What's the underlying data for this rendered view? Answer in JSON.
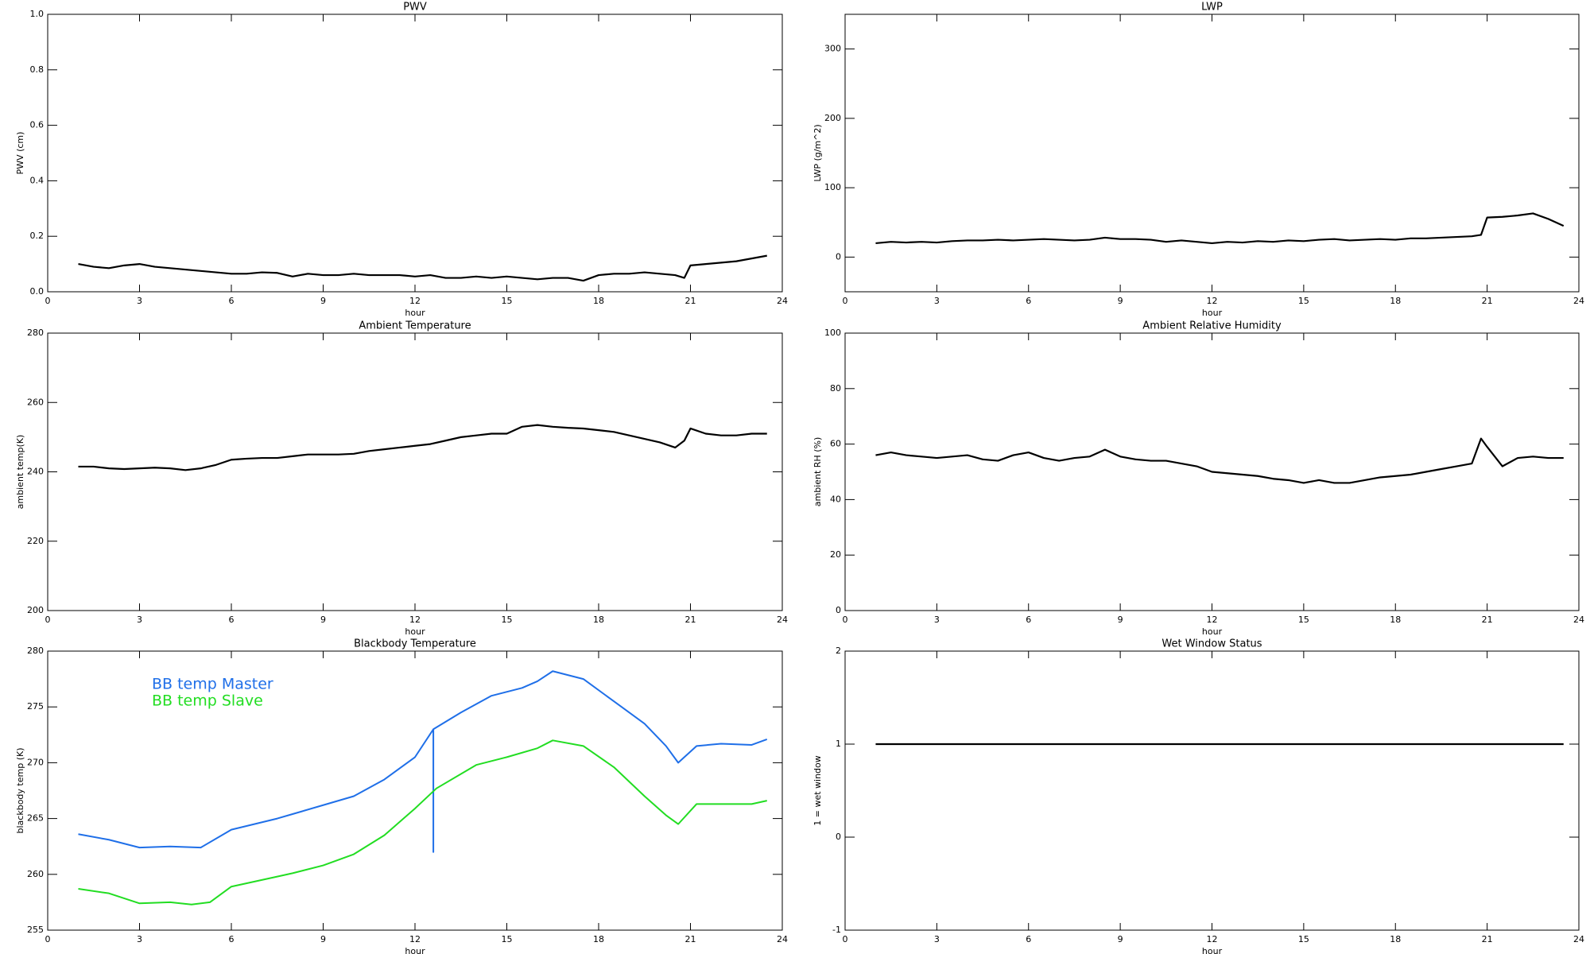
{
  "chart_data": [
    {
      "type": "line",
      "title": "PWV",
      "xlabel": "hour",
      "ylabel": "PWV (cm)",
      "color": "#000000",
      "x": [
        1,
        1.5,
        2,
        2.5,
        3,
        3.5,
        4,
        4.5,
        5,
        5.5,
        6,
        6.5,
        7,
        7.5,
        8,
        8.5,
        9,
        9.5,
        10,
        10.5,
        11,
        11.5,
        12,
        12.5,
        13,
        13.5,
        14,
        14.5,
        15,
        15.5,
        16,
        16.5,
        17,
        17.5,
        18,
        18.5,
        19,
        19.5,
        20,
        20.5,
        20.8,
        21,
        21.5,
        22,
        22.5,
        23,
        23.5
      ],
      "values": [
        0.1,
        0.09,
        0.085,
        0.095,
        0.1,
        0.09,
        0.085,
        0.08,
        0.075,
        0.07,
        0.065,
        0.065,
        0.07,
        0.068,
        0.055,
        0.065,
        0.06,
        0.06,
        0.065,
        0.06,
        0.06,
        0.06,
        0.055,
        0.06,
        0.05,
        0.05,
        0.055,
        0.05,
        0.055,
        0.05,
        0.045,
        0.05,
        0.05,
        0.04,
        0.06,
        0.065,
        0.065,
        0.07,
        0.065,
        0.06,
        0.05,
        0.095,
        0.1,
        0.105,
        0.11,
        0.12,
        0.13
      ],
      "xlim": [
        0,
        24
      ],
      "xticks": [
        0,
        3,
        6,
        9,
        12,
        15,
        18,
        21,
        24
      ],
      "ylim": [
        0,
        1
      ],
      "yticks": [
        {
          "value": 0,
          "label": "0.0"
        },
        0.2,
        0.4,
        0.6,
        0.8,
        {
          "value": 1,
          "label": "1.0"
        }
      ]
    },
    {
      "type": "line",
      "title": "LWP",
      "xlabel": "hour",
      "ylabel": "LWP (g/m^2)",
      "color": "#000000",
      "x": [
        1,
        1.5,
        2,
        2.5,
        3,
        3.5,
        4,
        4.5,
        5,
        5.5,
        6,
        6.5,
        7,
        7.5,
        8,
        8.5,
        9,
        9.5,
        10,
        10.5,
        11,
        11.5,
        12,
        12.5,
        13,
        13.5,
        14,
        14.5,
        15,
        15.5,
        16,
        16.5,
        17,
        17.5,
        18,
        18.5,
        19,
        19.5,
        20,
        20.5,
        20.8,
        21,
        21.5,
        22,
        22.5,
        23,
        23.5
      ],
      "values": [
        20,
        22,
        21,
        22,
        21,
        23,
        24,
        24,
        25,
        24,
        25,
        26,
        25,
        24,
        25,
        28,
        26,
        26,
        25,
        22,
        24,
        22,
        20,
        22,
        21,
        23,
        22,
        24,
        23,
        25,
        26,
        24,
        25,
        26,
        25,
        27,
        27,
        28,
        29,
        30,
        32,
        57,
        58,
        60,
        63,
        55,
        45
      ],
      "xlim": [
        0,
        24
      ],
      "xticks": [
        0,
        3,
        6,
        9,
        12,
        15,
        18,
        21,
        24
      ],
      "ylim": [
        -50,
        350
      ],
      "yticks": [
        0,
        100,
        200,
        300
      ]
    },
    {
      "type": "line",
      "title": "Ambient Temperature",
      "xlabel": "hour",
      "ylabel": "ambient temp(K)",
      "color": "#000000",
      "x": [
        1,
        1.5,
        2,
        2.5,
        3,
        3.5,
        4,
        4.5,
        5,
        5.5,
        6,
        6.5,
        7,
        7.5,
        8,
        8.5,
        9,
        9.5,
        10,
        10.5,
        11,
        11.5,
        12,
        12.5,
        13,
        13.5,
        14,
        14.5,
        15,
        15.5,
        16,
        16.5,
        17,
        17.5,
        18,
        18.5,
        19,
        19.5,
        20,
        20.5,
        20.8,
        21,
        21.5,
        22,
        22.5,
        23,
        23.5
      ],
      "values": [
        241.5,
        241.5,
        241,
        240.8,
        241,
        241.2,
        241,
        240.5,
        241,
        242,
        243.5,
        243.8,
        244,
        244,
        244.5,
        245,
        245,
        245,
        245.2,
        246,
        246.5,
        247,
        247.5,
        248,
        249,
        250,
        250.5,
        251,
        251,
        253,
        253.5,
        253,
        252.7,
        252.5,
        252,
        251.5,
        250.5,
        249.5,
        248.5,
        247,
        249,
        252.5,
        251,
        250.5,
        250.5,
        251,
        251
      ],
      "xlim": [
        0,
        24
      ],
      "xticks": [
        0,
        3,
        6,
        9,
        12,
        15,
        18,
        21,
        24
      ],
      "ylim": [
        200,
        280
      ],
      "yticks": [
        200,
        220,
        240,
        260,
        280
      ]
    },
    {
      "type": "line",
      "title": "Ambient Relative Humidity",
      "xlabel": "hour",
      "ylabel": "ambient RH (%)",
      "color": "#000000",
      "x": [
        1,
        1.5,
        2,
        2.5,
        3,
        3.5,
        4,
        4.5,
        5,
        5.5,
        6,
        6.5,
        7,
        7.5,
        8,
        8.5,
        9,
        9.5,
        10,
        10.5,
        11,
        11.5,
        12,
        12.5,
        13,
        13.5,
        14,
        14.5,
        15,
        15.5,
        16,
        16.5,
        17,
        17.5,
        18,
        18.5,
        19,
        19.5,
        20,
        20.5,
        20.8,
        21,
        21.5,
        22,
        22.5,
        23,
        23.5
      ],
      "values": [
        56,
        57,
        56,
        55.5,
        55,
        55.5,
        56,
        54.5,
        54,
        56,
        57,
        55,
        54,
        55,
        55.5,
        58,
        55.5,
        54.5,
        54,
        54,
        53,
        52,
        50,
        49.5,
        49,
        48.5,
        47.5,
        47,
        46,
        47,
        46,
        46,
        47,
        48,
        48.5,
        49,
        50,
        51,
        52,
        53,
        62,
        59,
        52,
        55,
        55.5,
        55,
        55
      ],
      "xlim": [
        0,
        24
      ],
      "xticks": [
        0,
        3,
        6,
        9,
        12,
        15,
        18,
        21,
        24
      ],
      "ylim": [
        0,
        100
      ],
      "yticks": [
        0,
        20,
        40,
        60,
        80,
        100
      ]
    },
    {
      "type": "line",
      "title": "Blackbody Temperature",
      "xlabel": "hour",
      "ylabel": "blackbody temp (K)",
      "legend": "upper left",
      "series": [
        {
          "name": "BB temp Master",
          "color": "#1f6fe8",
          "x": [
            1,
            2,
            3,
            4,
            5,
            6,
            7.5,
            8,
            9,
            10,
            11,
            12,
            12.6,
            12.6,
            12.6,
            13.5,
            14.5,
            15.5,
            16,
            16.5,
            17.5,
            18.5,
            19.5,
            20.2,
            20.6,
            21.2,
            22,
            23,
            23.5
          ],
          "values": [
            263.6,
            263.1,
            262.4,
            262.5,
            262.4,
            264,
            265,
            265.4,
            266.2,
            267,
            268.5,
            270.5,
            273,
            262,
            273,
            274.5,
            276,
            276.7,
            277.3,
            278.2,
            277.5,
            275.5,
            273.5,
            271.5,
            270,
            271.5,
            271.7,
            271.6,
            272.1
          ]
        },
        {
          "name": "BB temp Slave",
          "color": "#22dd22",
          "x": [
            1,
            2,
            3,
            4,
            4.7,
            5.3,
            6,
            7.5,
            8,
            9,
            10,
            11,
            12,
            12.7,
            14,
            15,
            16,
            16.5,
            17.5,
            18.5,
            19.5,
            20.2,
            20.6,
            21.2,
            22,
            23,
            23.5
          ],
          "values": [
            258.7,
            258.3,
            257.4,
            257.5,
            257.3,
            257.5,
            258.9,
            259.8,
            260.1,
            260.8,
            261.8,
            263.5,
            265.9,
            267.7,
            269.8,
            270.5,
            271.3,
            272,
            271.5,
            269.6,
            267,
            265.3,
            264.5,
            266.3,
            266.3,
            266.3,
            266.6
          ]
        }
      ],
      "xlim": [
        0,
        24
      ],
      "xticks": [
        0,
        3,
        6,
        9,
        12,
        15,
        18,
        21,
        24
      ],
      "ylim": [
        255,
        280
      ],
      "yticks": [
        255,
        260,
        265,
        270,
        275,
        280
      ]
    },
    {
      "type": "line",
      "title": "Wet Window Status",
      "xlabel": "hour",
      "ylabel": "1 = wet window",
      "color": "#000000",
      "x": [
        1,
        23.5
      ],
      "values": [
        1,
        1
      ],
      "xlim": [
        0,
        24
      ],
      "xticks": [
        0,
        3,
        6,
        9,
        12,
        15,
        18,
        21,
        24
      ],
      "ylim": [
        -1,
        2
      ],
      "yticks": [
        -1,
        0,
        1,
        2
      ]
    }
  ]
}
